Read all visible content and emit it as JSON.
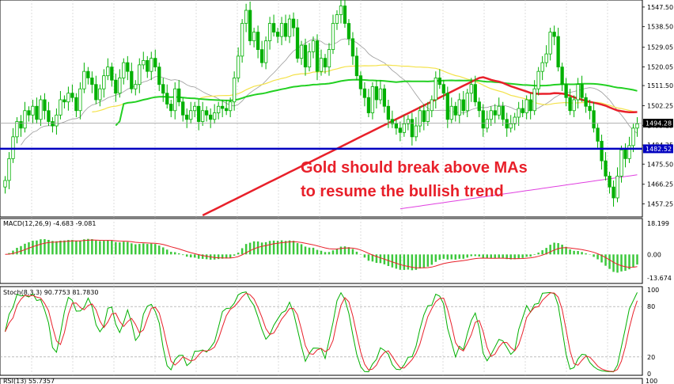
{
  "chart_data": {
    "type": "candlestick",
    "symbol_panel": "price",
    "price_axis": {
      "ticks": [
        "1547.50",
        "1538.50",
        "1529.05",
        "1520.05",
        "1511.50",
        "1502.25",
        "1493.25",
        "1484.25",
        "1475.50",
        "1466.25",
        "1457.25"
      ],
      "range": [
        1452,
        1550
      ]
    },
    "current_price_label": "1494.28",
    "support_label": "1482.52",
    "support_level": 1482.52,
    "current_price": 1494.28,
    "annotation_lines": [
      "Gold should break above MAs",
      "to resume the bullish trend"
    ],
    "colors": {
      "candle": "#00b000",
      "ma_yellow": "#f4e24a",
      "ma_green": "#22d022",
      "ma_red": "#e8202a",
      "ma_magenta": "#e040e0",
      "ma_gray": "#9a9a9a",
      "support": "#0000c0",
      "annotation": "#e8202a"
    },
    "macd": {
      "label": "MACD(12,26,9) -4.683 -9.081",
      "ticks": [
        "18.199",
        "0.00",
        "-13.674"
      ],
      "range": [
        -16,
        20
      ]
    },
    "stoch": {
      "label": "Stoch(8,3,3) 90.7753 81.7830",
      "ticks": [
        "100",
        "80",
        "20",
        "0"
      ],
      "range": [
        0,
        100
      ]
    },
    "rsi": {
      "label": "RSI(13) 55.7357",
      "ticks": [
        "100"
      ]
    },
    "series_close": [
      1468,
      1478,
      1488,
      1495,
      1492,
      1500,
      1498,
      1502,
      1496,
      1505,
      1500,
      1495,
      1493,
      1498,
      1505,
      1504,
      1508,
      1506,
      1500,
      1510,
      1518,
      1515,
      1512,
      1505,
      1510,
      1516,
      1520,
      1514,
      1508,
      1515,
      1522,
      1518,
      1510,
      1512,
      1521,
      1523,
      1518,
      1524,
      1520,
      1512,
      1508,
      1503,
      1500,
      1510,
      1504,
      1498,
      1496,
      1500,
      1502,
      1495,
      1500,
      1498,
      1496,
      1499,
      1502,
      1501,
      1500,
      1504,
      1515,
      1525,
      1540,
      1546,
      1532,
      1536,
      1528,
      1522,
      1532,
      1540,
      1536,
      1534,
      1540,
      1534,
      1542,
      1538,
      1524,
      1530,
      1520,
      1527,
      1532,
      1518,
      1524,
      1520,
      1528,
      1540,
      1544,
      1548,
      1540,
      1533,
      1525,
      1516,
      1510,
      1506,
      1499,
      1511,
      1505,
      1510,
      1502,
      1496,
      1494,
      1492,
      1490,
      1494,
      1496,
      1488,
      1493,
      1500,
      1495,
      1500,
      1505,
      1515,
      1512,
      1508,
      1496,
      1502,
      1498,
      1505,
      1500,
      1508,
      1512,
      1504,
      1500,
      1492,
      1496,
      1500,
      1498,
      1502,
      1496,
      1492,
      1494,
      1497,
      1501,
      1499,
      1505,
      1500,
      1510,
      1518,
      1522,
      1526,
      1536,
      1534,
      1520,
      1512,
      1506,
      1500,
      1505,
      1512,
      1506,
      1502,
      1500,
      1492,
      1486,
      1477,
      1470,
      1465,
      1460,
      1470,
      1482,
      1478,
      1484,
      1492,
      1494
    ]
  }
}
